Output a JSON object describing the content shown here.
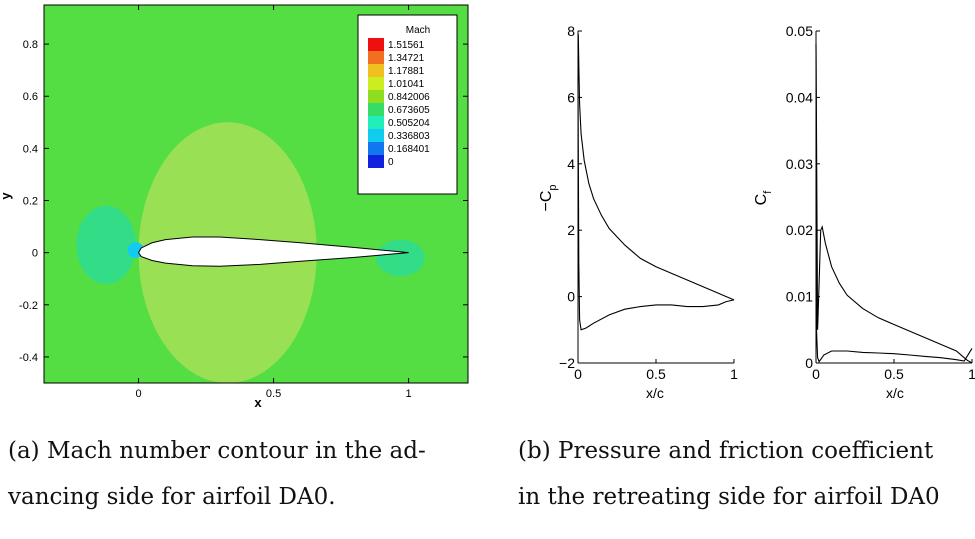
{
  "captions": {
    "a_line1": "(a) Mach number contour in the ad-",
    "a_line2": "vancing side for airfoil DA0.",
    "b_line1": "(b) Pressure and friction coefficient",
    "b_line2": "in the retreating side for airfoil DA0"
  },
  "chart_data": [
    {
      "type": "heatmap",
      "title": "",
      "xlabel": "x",
      "ylabel": "y",
      "xlim": [
        -0.35,
        1.22
      ],
      "ylim": [
        -0.5,
        0.95
      ],
      "xticks": [
        "0",
        "0.5",
        "1"
      ],
      "yticks": [
        "-0.4",
        "-0.2",
        "0",
        "0.2",
        "0.4",
        "0.6",
        "0.8"
      ],
      "xtick_values": [
        0,
        0.5,
        1
      ],
      "ytick_values": [
        -0.4,
        -0.2,
        0,
        0.2,
        0.4,
        0.6,
        0.8
      ],
      "legend": {
        "title": "Mach",
        "position": "top-right",
        "levels": [
          "1.51561",
          "1.34721",
          "1.17881",
          "1.01041",
          "0.842006",
          "0.673605",
          "0.505204",
          "0.336803",
          "0.168401",
          "0"
        ],
        "colors": [
          "#ee1010",
          "#f07020",
          "#f0c020",
          "#ccee20",
          "#90dd20",
          "#33dd66",
          "#22eebb",
          "#11ccee",
          "#1177ee",
          "#1122dd"
        ]
      },
      "background_color": "#55dd44",
      "regions": [
        {
          "name": "supersonic-bubble",
          "color": "#99e055",
          "cx": 0.33,
          "cy": 0.0,
          "rx": 0.33,
          "ry": 0.5
        },
        {
          "name": "leading-edge-low-speed",
          "color": "#33dd88",
          "cx": -0.12,
          "cy": 0.03,
          "rx": 0.11,
          "ry": 0.15
        },
        {
          "name": "trailing-edge-low-speed",
          "color": "#33dd88",
          "cx": 0.97,
          "cy": -0.02,
          "rx": 0.09,
          "ry": 0.07
        },
        {
          "name": "stagnation-point",
          "color": "#11ccee",
          "cx": -0.01,
          "cy": 0.01,
          "rx": 0.03,
          "ry": 0.03
        }
      ],
      "airfoil": {
        "upper": [
          [
            0,
            0
          ],
          [
            0.01,
            0.018
          ],
          [
            0.05,
            0.038
          ],
          [
            0.1,
            0.05
          ],
          [
            0.2,
            0.06
          ],
          [
            0.3,
            0.06
          ],
          [
            0.45,
            0.05
          ],
          [
            0.6,
            0.038
          ],
          [
            0.8,
            0.02
          ],
          [
            1.0,
            0.0
          ]
        ],
        "lower": [
          [
            0,
            0
          ],
          [
            0.01,
            -0.015
          ],
          [
            0.05,
            -0.03
          ],
          [
            0.1,
            -0.04
          ],
          [
            0.2,
            -0.05
          ],
          [
            0.3,
            -0.052
          ],
          [
            0.45,
            -0.045
          ],
          [
            0.6,
            -0.033
          ],
          [
            0.8,
            -0.018
          ],
          [
            1.0,
            0.0
          ]
        ]
      }
    },
    {
      "type": "line",
      "title": "",
      "xlabel": "x/c",
      "ylabel": "-C_p",
      "ylabel_main": "−C",
      "ylabel_sub": "p",
      "xlim": [
        0,
        1
      ],
      "ylim": [
        -2,
        8
      ],
      "xticks": [
        "0",
        "0.5",
        "1"
      ],
      "yticks": [
        "−2",
        "0",
        "2",
        "4",
        "6",
        "8"
      ],
      "xtick_values": [
        0,
        0.5,
        1
      ],
      "ytick_values": [
        -2,
        0,
        2,
        4,
        6,
        8
      ],
      "series": [
        {
          "x": [
            0,
            0.002,
            0.005,
            0.01,
            0.02,
            0.04,
            0.07,
            0.1,
            0.15,
            0.2,
            0.3,
            0.4,
            0.5,
            0.6,
            0.7,
            0.8,
            0.9,
            0.95,
            1.0
          ],
          "y": [
            6.5,
            7.9,
            7.0,
            5.8,
            4.9,
            4.1,
            3.4,
            2.95,
            2.45,
            2.05,
            1.55,
            1.15,
            0.9,
            0.7,
            0.5,
            0.3,
            0.1,
            0.0,
            -0.1
          ]
        },
        {
          "x": [
            0,
            0.005,
            0.01,
            0.02,
            0.05,
            0.1,
            0.2,
            0.3,
            0.4,
            0.5,
            0.6,
            0.7,
            0.8,
            0.9,
            0.95,
            1.0
          ],
          "y": [
            6.5,
            1.0,
            -0.7,
            -1.0,
            -0.95,
            -0.8,
            -0.55,
            -0.38,
            -0.3,
            -0.25,
            -0.25,
            -0.3,
            -0.3,
            -0.25,
            -0.15,
            -0.1
          ]
        }
      ]
    },
    {
      "type": "line",
      "title": "",
      "xlabel": "x/c",
      "ylabel": "C_f",
      "ylabel_main": "C",
      "ylabel_sub": "f",
      "xlim": [
        0,
        1
      ],
      "ylim": [
        0,
        0.05
      ],
      "xticks": [
        "0",
        "0.5",
        "1"
      ],
      "yticks": [
        "0",
        "0.01",
        "0.02",
        "0.03",
        "0.04",
        "0.05"
      ],
      "xtick_values": [
        0,
        0.5,
        1
      ],
      "ytick_values": [
        0,
        0.01,
        0.02,
        0.03,
        0.04,
        0.05
      ],
      "series": [
        {
          "x": [
            0,
            0.003,
            0.01,
            0.02,
            0.03,
            0.04,
            0.06,
            0.1,
            0.15,
            0.2,
            0.3,
            0.4,
            0.5,
            0.6,
            0.7,
            0.8,
            0.9,
            0.95,
            0.97,
            1.0
          ],
          "y": [
            0.048,
            0.035,
            0.005,
            0.012,
            0.02,
            0.0205,
            0.018,
            0.0145,
            0.012,
            0.0102,
            0.0082,
            0.0068,
            0.0058,
            0.0048,
            0.0038,
            0.0028,
            0.0018,
            0.0008,
            0.0004,
            0.0
          ]
        },
        {
          "x": [
            0,
            0.003,
            0.01,
            0.02,
            0.05,
            0.1,
            0.2,
            0.3,
            0.4,
            0.5,
            0.6,
            0.7,
            0.8,
            0.9,
            0.95,
            1.0
          ],
          "y": [
            0.048,
            0.005,
            0.0008,
            0.0002,
            0.0012,
            0.0018,
            0.0018,
            0.0016,
            0.0015,
            0.0014,
            0.0012,
            0.001,
            0.0008,
            0.0005,
            0.0003,
            0.0022
          ]
        }
      ]
    }
  ]
}
